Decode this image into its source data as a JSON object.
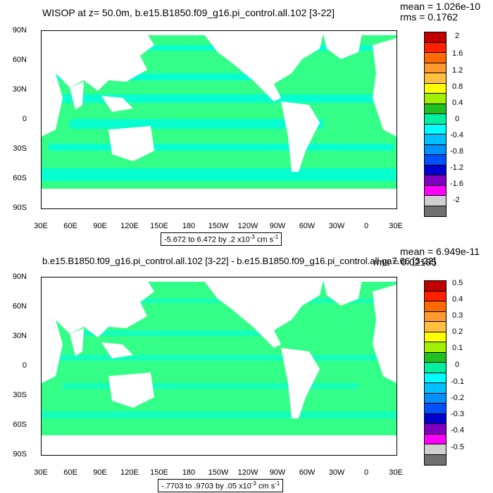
{
  "panels": [
    {
      "title": "WISOP at z=  50.0m, b.e15.B1850.f09_g16.pi_control.all.102 [3-22]",
      "mean_label": "mean = 1.026e-10",
      "rms_label": "rms = 0.1762",
      "range_label": "-5.672 to 6.472 by .2 x10",
      "range_exp": "-3",
      "range_unit": " cm s",
      "range_unit_exp": "-1",
      "colorbar_labels": [
        "2",
        "1.6",
        "1.2",
        "0.8",
        "0.4",
        "0",
        "-0.4",
        "-0.8",
        "-1.2",
        "-1.6",
        "-2"
      ]
    },
    {
      "title": "b.e15.B1850.f09_g16.pi_control.all.102 [3-22] - b.e15.B1850.f09_g16.pi_control.all.ga7.66 [3-22]",
      "mean_label": "mean = 6.949e-11",
      "rms_label": "rms = 0.02185",
      "range_label": "-.7703 to .9703 by .05 x10",
      "range_exp": "-3",
      "range_unit": " cm s",
      "range_unit_exp": "-1",
      "colorbar_labels": [
        "0.5",
        "0.4",
        "0.3",
        "0.2",
        "0.1",
        "0",
        "-0.1",
        "-0.2",
        "-0.3",
        "-0.4",
        "-0.5"
      ]
    }
  ],
  "lat_labels": [
    "90N",
    "60N",
    "30N",
    "0",
    "30S",
    "60S",
    "90S"
  ],
  "lon_labels": [
    "30E",
    "60E",
    "90E",
    "120E",
    "150E",
    "180",
    "150W",
    "120W",
    "90W",
    "60W",
    "30W",
    "0",
    "30E"
  ],
  "colorbar_colors": [
    "#c00000",
    "#ff2000",
    "#ff6a00",
    "#ff9a30",
    "#ffc040",
    "#ffff00",
    "#a0f000",
    "#20c020",
    "#00f0a0",
    "#00ffff",
    "#00c0ff",
    "#0090ff",
    "#0050ff",
    "#0000d0",
    "#8000c0",
    "#ff00ff",
    "#d0d0d0",
    "#707070"
  ],
  "map_colors": {
    "ocean_primary": "#33ff88",
    "ocean_secondary": "#00ffdd",
    "land": "#ffffff"
  }
}
